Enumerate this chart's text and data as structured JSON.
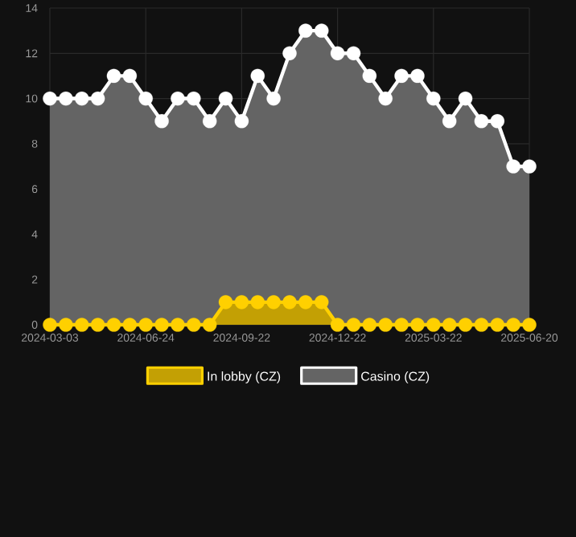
{
  "chart_data": {
    "type": "area",
    "categories": [
      "2024-03-03",
      null,
      null,
      null,
      null,
      null,
      "2024-06-24",
      null,
      null,
      null,
      null,
      null,
      "2024-09-22",
      null,
      null,
      null,
      null,
      null,
      "2024-12-22",
      null,
      null,
      null,
      null,
      null,
      "2025-03-22",
      null,
      null,
      null,
      null,
      null,
      "2025-06-20"
    ],
    "series": [
      {
        "name": "Casino (CZ)",
        "color": "#ffffff",
        "values": [
          10,
          10,
          10,
          10,
          11,
          11,
          10,
          9,
          10,
          10,
          9,
          10,
          9,
          11,
          10,
          12,
          13,
          13,
          12,
          12,
          11,
          10,
          11,
          11,
          10,
          9,
          10,
          9,
          9,
          7,
          7
        ]
      },
      {
        "name": "In lobby (CZ)",
        "color": "#ffd000",
        "values": [
          0,
          0,
          0,
          0,
          0,
          0,
          0,
          0,
          0,
          0,
          0,
          1,
          1,
          1,
          1,
          1,
          1,
          1,
          0,
          0,
          0,
          0,
          0,
          0,
          0,
          0,
          0,
          0,
          0,
          0,
          0
        ]
      }
    ],
    "ylim": [
      0,
      14
    ],
    "yticks": [
      0,
      2,
      4,
      6,
      8,
      10,
      12,
      14
    ],
    "grid": true,
    "legend": "bottom",
    "marker": "circle"
  }
}
